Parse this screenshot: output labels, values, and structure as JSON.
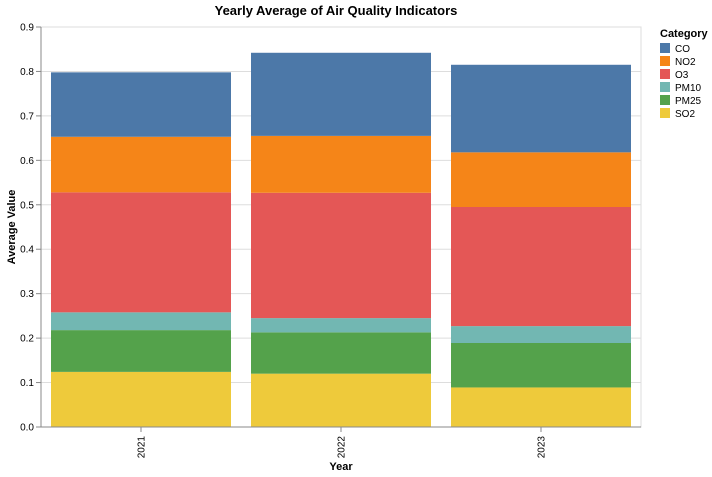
{
  "chart_data": {
    "type": "bar",
    "stacked": true,
    "title": "Yearly Average of Air Quality Indicators",
    "xlabel": "Year",
    "ylabel": "Average Value",
    "categories": [
      "2021",
      "2022",
      "2023"
    ],
    "ylim": [
      0,
      0.9
    ],
    "yticks": [
      "0.0",
      "0.1",
      "0.2",
      "0.3",
      "0.4",
      "0.5",
      "0.6",
      "0.7",
      "0.8",
      "0.9"
    ],
    "grid": true,
    "legend": {
      "title": "Category",
      "placement": "right",
      "order": [
        "CO",
        "NO2",
        "O3",
        "PM10",
        "PM25",
        "SO2"
      ]
    },
    "stack_order_bottom_to_top": [
      "SO2",
      "PM25",
      "PM10",
      "O3",
      "NO2",
      "CO"
    ],
    "series": [
      {
        "name": "CO",
        "color": "#4c78a8",
        "values": [
          0.145,
          0.187,
          0.197
        ]
      },
      {
        "name": "NO2",
        "color": "#f58518",
        "values": [
          0.125,
          0.128,
          0.123
        ]
      },
      {
        "name": "O3",
        "color": "#e45756",
        "values": [
          0.27,
          0.282,
          0.268
        ]
      },
      {
        "name": "PM10",
        "color": "#72b7b2",
        "values": [
          0.04,
          0.032,
          0.038
        ]
      },
      {
        "name": "PM25",
        "color": "#54a24b",
        "values": [
          0.094,
          0.093,
          0.1
        ]
      },
      {
        "name": "SO2",
        "color": "#eeca3b",
        "values": [
          0.124,
          0.12,
          0.089
        ]
      }
    ]
  }
}
